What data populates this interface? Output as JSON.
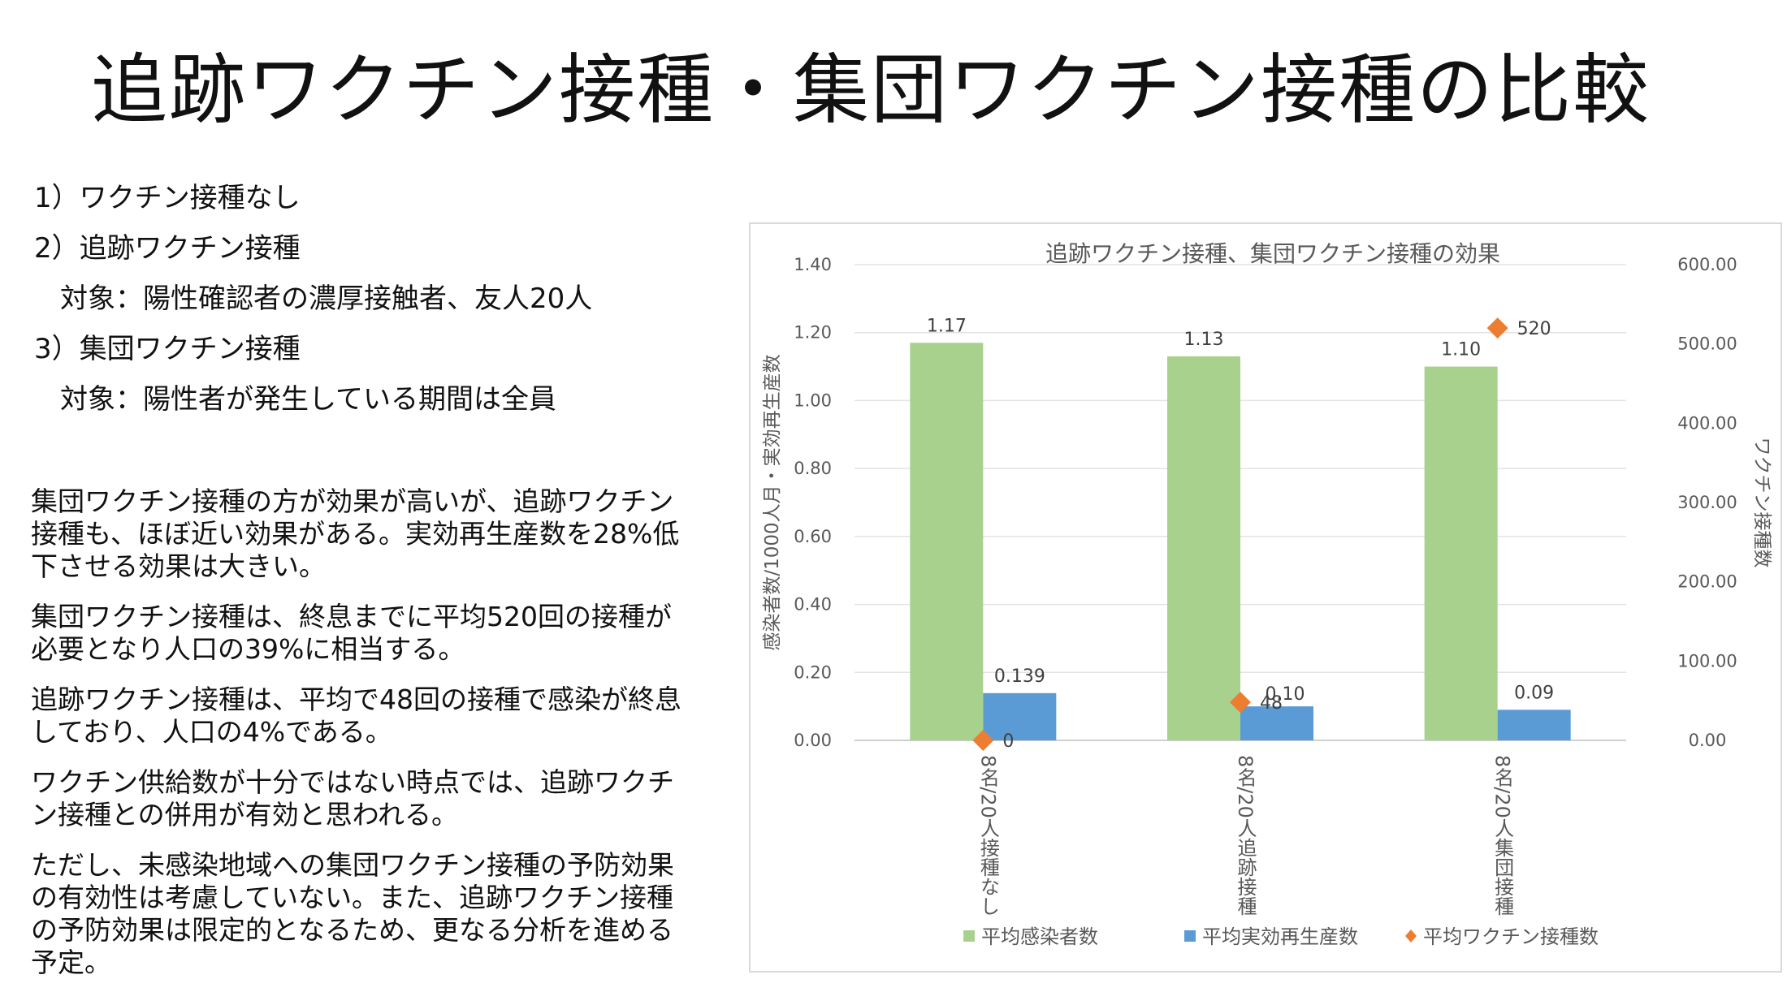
{
  "slide": {
    "title": "追跡ワクチン接種・集団ワクチン接種の比較",
    "conditions": [
      "1）ワクチン接種なし",
      "2）追跡ワクチン接種",
      "対象：陽性確認者の濃厚接触者、友人20人",
      "3）集団ワクチン接種",
      "対象：陽性者が発生している期間は全員"
    ],
    "notes": [
      "集団ワクチン接種の方が効果が高いが、追跡ワクチン接種も、ほぼ近い効果がある。実効再生産数を28%低下させる効果は大きい。",
      "集団ワクチン接種は、終息までに平均520回の接種が必要となり人口の39%に相当する。",
      "追跡ワクチン接種は、平均で48回の接種で感染が終息しており、人口の4%である。",
      "ワクチン供給数が十分ではない時点では、追跡ワクチン接種との併用が有効と思われる。",
      "ただし、未感染地域への集団ワクチン接種の予防効果の有効性は考慮していない。また、追跡ワクチン接種の予防効果は限定的となるため、更なる分析を進める予定。"
    ]
  },
  "chart_data": {
    "type": "bar",
    "title": "追跡ワクチン接種、集団ワクチン接種の効果",
    "categories": [
      "8名/20人接種なし",
      "8名/20人追跡接種",
      "8名/20人集団接種"
    ],
    "ylabel": "感染者数/1000人月・実効再生産数",
    "y2label": "ワクチン接種数",
    "ylim": [
      0,
      1.4
    ],
    "y2lim": [
      0,
      600
    ],
    "yticks": [
      "0.00",
      "0.20",
      "0.40",
      "0.60",
      "0.80",
      "1.00",
      "1.20",
      "1.40"
    ],
    "y2ticks": [
      "0.00",
      "100.00",
      "200.00",
      "300.00",
      "400.00",
      "500.00",
      "600.00"
    ],
    "grid": true,
    "legend_position": "bottom",
    "series": [
      {
        "name": "平均感染者数",
        "kind": "bar",
        "axis": "left",
        "color": "#a9d18e",
        "values": [
          1.17,
          1.13,
          1.1
        ],
        "labels": [
          "1.17",
          "1.13",
          "1.10"
        ]
      },
      {
        "name": "平均実効再生産数",
        "kind": "bar",
        "axis": "left",
        "color": "#5b9bd5",
        "values": [
          0.139,
          0.1,
          0.09
        ],
        "labels": [
          "0.139",
          "0.10",
          "0.09"
        ]
      },
      {
        "name": "平均ワクチン接種数",
        "kind": "marker",
        "axis": "right",
        "color": "#ed7d31",
        "values": [
          0,
          48,
          520
        ],
        "labels": [
          "0",
          "48",
          "520"
        ]
      }
    ]
  }
}
